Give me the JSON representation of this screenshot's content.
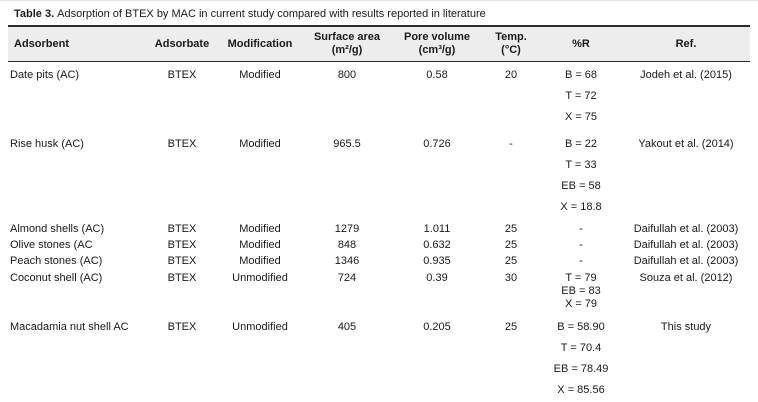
{
  "colors": {
    "header_bg": "#ededed",
    "rule": "#2b2b2b",
    "text": "#1a1a1a"
  },
  "table": {
    "caption_label": "Table 3.",
    "caption_text": "Adsorption of BTEX by MAC in current study compared with results reported in literature",
    "columns": [
      {
        "key": "adsorbent",
        "line1": "Adsorbent",
        "line2": "",
        "align": "left"
      },
      {
        "key": "adsorbate",
        "line1": "Adsorbate",
        "line2": ""
      },
      {
        "key": "modification",
        "line1": "Modification",
        "line2": ""
      },
      {
        "key": "surface-area",
        "line1": "Surface area",
        "line2": "(m²/g)"
      },
      {
        "key": "pore-volume",
        "line1": "Pore volume",
        "line2": "(cm³/g)"
      },
      {
        "key": "temp",
        "line1": "Temp.",
        "line2": "(°C)"
      },
      {
        "key": "percent-r",
        "line1": "%R",
        "line2": ""
      },
      {
        "key": "ref",
        "line1": "Ref.",
        "line2": ""
      }
    ],
    "rows": [
      {
        "adsorbent": "Date pits (AC)",
        "adsorbate": "BTEX",
        "modification": "Modified",
        "surface_area": "800",
        "pore_volume": "0.58",
        "temp": "20",
        "r_values": [
          "B = 68",
          "T = 72",
          "X = 75"
        ],
        "r_spacing": "wide",
        "ref": "Jodeh et al. (2015)"
      },
      {
        "adsorbent": "Rise husk (AC)",
        "adsorbate": "BTEX",
        "modification": "Modified",
        "surface_area": "965.5",
        "pore_volume": "0.726",
        "temp": "-",
        "r_values": [
          "B = 22",
          "T = 33",
          "EB = 58",
          "X = 18.8"
        ],
        "r_spacing": "wide",
        "ref": "Yakout et al. (2014)"
      },
      {
        "adsorbent": "Almond shells (AC)",
        "adsorbate": "BTEX",
        "modification": "Modified",
        "surface_area": "1279",
        "pore_volume": "1.011",
        "temp": "25",
        "r_values": [
          "-"
        ],
        "r_spacing": "single",
        "ref": "Daifullah et al. (2003)"
      },
      {
        "adsorbent": "Olive stones (AC",
        "adsorbate": "BTEX",
        "modification": "Modified",
        "surface_area": "848",
        "pore_volume": "0.632",
        "temp": "25",
        "r_values": [
          "-"
        ],
        "r_spacing": "single",
        "ref": "Daifullah et al. (2003)"
      },
      {
        "adsorbent": "Peach stones (AC)",
        "adsorbate": "BTEX",
        "modification": "Modified",
        "surface_area": "1346",
        "pore_volume": "0.935",
        "temp": "25",
        "r_values": [
          "-"
        ],
        "r_spacing": "single",
        "ref": "Daifullah et al. (2003)"
      },
      {
        "adsorbent": "Coconut shell (AC)",
        "adsorbate": "BTEX",
        "modification": "Unmodified",
        "surface_area": "724",
        "pore_volume": "0.39",
        "temp": "30",
        "r_values": [
          "T = 79",
          "EB = 83",
          "X = 79"
        ],
        "r_spacing": "compact",
        "ref": "Souza et al. (2012)"
      },
      {
        "adsorbent": "Macadamia nut shell AC",
        "adsorbate": "BTEX",
        "modification": "Unmodified",
        "surface_area": "405",
        "pore_volume": "0.205",
        "temp": "25",
        "r_values": [
          "B = 58.90",
          "T = 70.4",
          "EB = 78.49",
          "X = 85.56"
        ],
        "r_spacing": "wide",
        "ref": "This study"
      }
    ]
  }
}
